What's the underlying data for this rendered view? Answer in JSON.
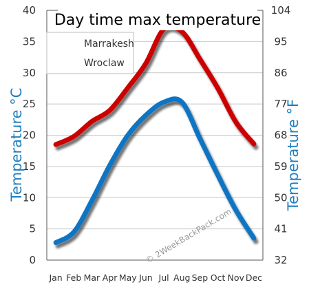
{
  "chart_data": {
    "type": "line",
    "title": "Day time max temperature",
    "categories": [
      "Jan",
      "Feb",
      "Mar",
      "Apr",
      "May",
      "Jun",
      "Jul",
      "Aug",
      "Sep",
      "Oct",
      "Nov",
      "Dec"
    ],
    "series": [
      {
        "name": "Marrakesh",
        "color": "#cc0000",
        "values": [
          18.5,
          19.8,
          22.2,
          24.0,
          27.6,
          31.5,
          37.0,
          36.6,
          32.2,
          27.5,
          22.1,
          18.6
        ]
      },
      {
        "name": "Wroclaw",
        "color": "#0a74c4",
        "values": [
          2.8,
          4.5,
          9.5,
          15.2,
          20.0,
          23.2,
          25.3,
          25.3,
          19.5,
          13.6,
          8.0,
          3.5
        ]
      }
    ],
    "ylabel_left": "Temperature °C",
    "ylabel_right": "Temperature °F",
    "ylim_left": [
      0,
      40
    ],
    "ylim_right": [
      32,
      104
    ],
    "yticks_left": [
      "0",
      "5",
      "10",
      "15",
      "20",
      "25",
      "30",
      "35",
      "40"
    ],
    "yticks_right": [
      "32",
      "41",
      "50",
      "59",
      "68",
      "77",
      "86",
      "95",
      "104"
    ],
    "grid": "horizontal",
    "legend_position": "top-left",
    "watermark": "© 2WeekBackPack.com"
  }
}
